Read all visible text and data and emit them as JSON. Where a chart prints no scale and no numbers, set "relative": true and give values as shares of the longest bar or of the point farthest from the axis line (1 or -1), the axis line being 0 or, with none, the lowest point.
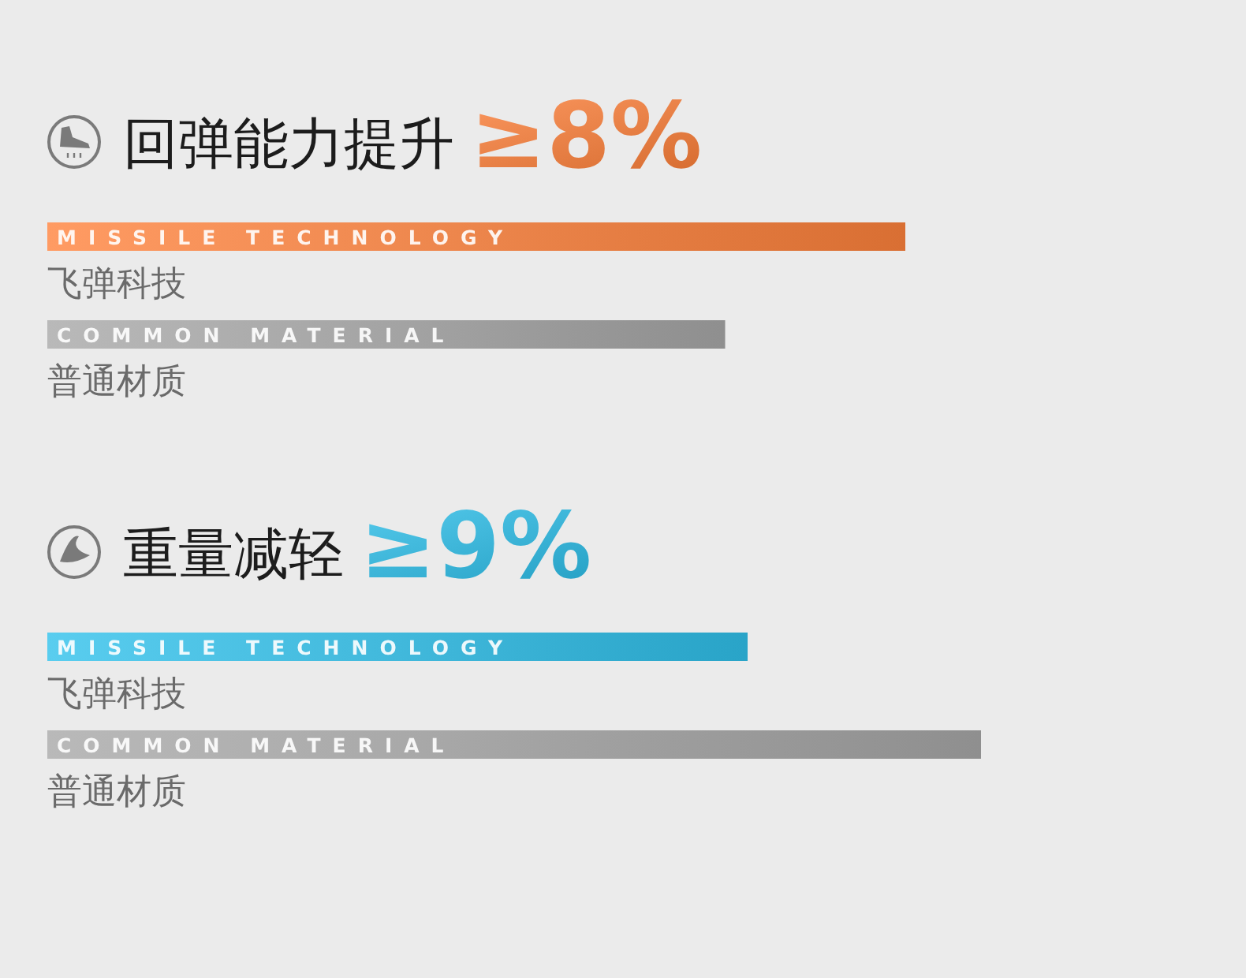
{
  "chart_data": [
    {
      "type": "bar",
      "orientation": "horizontal",
      "relative": true,
      "title": "回弹能力提升",
      "subtitle": "≥8%",
      "categories": [
        "飞弹科技",
        "普通材质"
      ],
      "values": [
        1,
        0.79
      ],
      "colors": [
        "#ff823c",
        "#a8a8a8"
      ],
      "annotations": [
        "MISSILE TECHNOLOGY",
        "COMMON MATERIAL"
      ]
    },
    {
      "type": "bar",
      "orientation": "horizontal",
      "relative": true,
      "title": "重量减轻",
      "subtitle": "≥9%",
      "categories": [
        "飞弹科技",
        "普通材质"
      ],
      "values": [
        0.75,
        1
      ],
      "colors": [
        "#30c1eb",
        "#a8a8a8"
      ],
      "annotations": [
        "MISSILE TECHNOLOGY",
        "COMMON MATERIAL"
      ]
    }
  ]
}
